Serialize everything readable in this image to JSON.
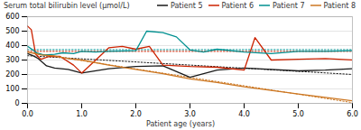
{
  "chart_data": {
    "type": "line",
    "xlabel": "Patient age (years)",
    "ylabel": "Serum total bilirubin level (μmol/L)",
    "xlim": [
      0,
      6
    ],
    "ylim": [
      0,
      600
    ],
    "xticks": [
      0,
      1,
      2,
      3,
      4,
      5,
      6
    ],
    "yticks": [
      0,
      100,
      200,
      300,
      400,
      500,
      600
    ],
    "grid": true,
    "legend": "upper right",
    "series": [
      {
        "name": "Patient 5",
        "color": "#1a1a1a",
        "x": [
          0,
          0.1,
          0.2,
          0.35,
          0.5,
          0.75,
          1.0,
          1.5,
          2.0,
          2.5,
          3.0,
          3.5,
          4.0,
          4.5,
          5.0,
          5.5,
          6.0
        ],
        "values": [
          345,
          330,
          310,
          260,
          245,
          235,
          210,
          240,
          255,
          260,
          180,
          230,
          245,
          235,
          225,
          230,
          240
        ],
        "trend_x": [
          0,
          6
        ],
        "trend_values": [
          330,
          200
        ]
      },
      {
        "name": "Patient 6",
        "color": "#cc2200",
        "x": [
          0,
          0.07,
          0.15,
          0.25,
          0.4,
          0.6,
          0.85,
          1.0,
          1.5,
          1.75,
          2.0,
          2.25,
          2.5,
          3.0,
          3.5,
          4.0,
          4.2,
          4.5,
          5.0,
          5.5,
          6.0
        ],
        "values": [
          535,
          510,
          340,
          305,
          325,
          325,
          265,
          210,
          385,
          395,
          375,
          395,
          265,
          255,
          250,
          230,
          455,
          300,
          305,
          310,
          300
        ],
        "trend_x": [
          0,
          6
        ],
        "trend_values": [
          360,
          360
        ]
      },
      {
        "name": "Patient 7",
        "color": "#009090",
        "x": [
          0,
          0.08,
          0.17,
          0.3,
          0.5,
          0.65,
          0.85,
          1.0,
          1.25,
          1.5,
          2.0,
          2.2,
          2.5,
          2.75,
          3.0,
          3.25,
          3.5,
          4.0,
          4.5,
          5.0,
          5.5,
          6.0
        ],
        "values": [
          395,
          375,
          350,
          335,
          340,
          350,
          345,
          360,
          355,
          360,
          365,
          500,
          490,
          460,
          370,
          355,
          375,
          355,
          345,
          360,
          360,
          365
        ],
        "trend_x": [
          0,
          6
        ],
        "trend_values": [
          372,
          372
        ]
      },
      {
        "name": "Patient 8",
        "color": "#cc7722",
        "x": [
          0,
          0.25,
          0.5,
          0.75,
          1.0,
          1.5,
          2.0,
          2.5,
          3.0,
          3.5,
          4.0,
          4.5,
          5.0,
          5.5,
          6.0
        ],
        "values": [
          355,
          335,
          328,
          310,
          300,
          265,
          235,
          205,
          170,
          145,
          115,
          90,
          65,
          42,
          18
        ],
        "trend_x": [
          0,
          6
        ],
        "trend_values": [
          355,
          5
        ]
      }
    ]
  }
}
